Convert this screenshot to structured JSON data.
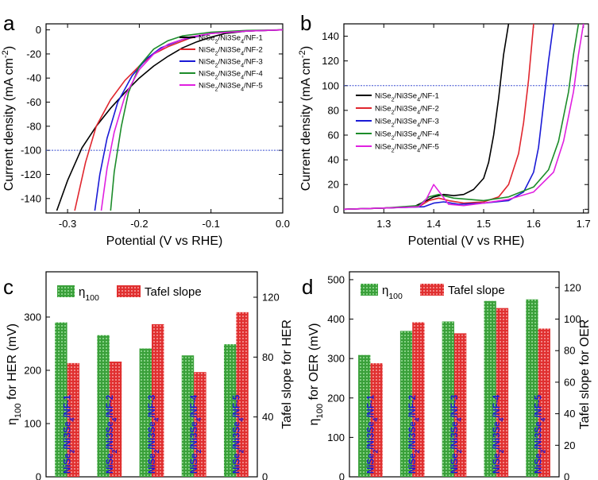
{
  "panel_letters": {
    "a": "a",
    "b": "b",
    "c": "c",
    "d": "d"
  },
  "samples": [
    "NiSe2/Ni3Se4/NF-1",
    "NiSe2/Ni3Se4/NF-2",
    "NiSe2/Ni3Se4/NF-3",
    "NiSe2/Ni3Se4/NF-4",
    "NiSe2/Ni3Se4/NF-5"
  ],
  "colors": {
    "s1": "#000000",
    "s2": "#e0262e",
    "s3": "#1a1ad6",
    "s4": "#1c8c2a",
    "s5": "#e020e0",
    "ref_line": "#3a4fd0",
    "eta_bar": "#3aa03a",
    "tafel_bar": "#e03030"
  },
  "chart_data": [
    {
      "id": "a",
      "type": "line",
      "title": "",
      "xlabel": "Potential (V vs RHE)",
      "ylabel": "Current density (mA cm-2)",
      "xlim": [
        -0.33,
        0.0
      ],
      "ylim": [
        -152,
        5
      ],
      "xticks": [
        "-0.3",
        "-0.2",
        "-0.1",
        "0.0"
      ],
      "xtick_values": [
        -0.3,
        -0.2,
        -0.1,
        0.0
      ],
      "yticks": [
        "0",
        "-20",
        "-40",
        "-60",
        "-80",
        "-100",
        "-120",
        "-140"
      ],
      "ytick_values": [
        0,
        -20,
        -40,
        -60,
        -80,
        -100,
        -120,
        -140
      ],
      "reference_line": {
        "y": -100,
        "style": "dashed"
      },
      "legend_position": "top-right",
      "series": [
        {
          "name": "NiSe2/Ni3Se4/NF-1",
          "x": [
            0.0,
            -0.05,
            -0.08,
            -0.1,
            -0.12,
            -0.14,
            -0.16,
            -0.18,
            -0.2,
            -0.22,
            -0.24,
            -0.26,
            -0.28,
            -0.3,
            -0.315
          ],
          "y": [
            0,
            -1,
            -3,
            -6,
            -10,
            -15,
            -22,
            -30,
            -40,
            -52,
            -65,
            -80,
            -98,
            -125,
            -150
          ]
        },
        {
          "name": "NiSe2/Ni3Se4/NF-2",
          "x": [
            0.0,
            -0.05,
            -0.1,
            -0.13,
            -0.16,
            -0.18,
            -0.2,
            -0.22,
            -0.24,
            -0.26,
            -0.275,
            -0.29
          ],
          "y": [
            0,
            -1,
            -3,
            -7,
            -14,
            -20,
            -30,
            -42,
            -58,
            -80,
            -110,
            -150
          ]
        },
        {
          "name": "NiSe2/Ni3Se4/NF-3",
          "x": [
            0.0,
            -0.05,
            -0.1,
            -0.14,
            -0.17,
            -0.19,
            -0.21,
            -0.23,
            -0.245,
            -0.255,
            -0.262
          ],
          "y": [
            0,
            -1,
            -3,
            -8,
            -15,
            -24,
            -38,
            -60,
            -90,
            -120,
            -150
          ]
        },
        {
          "name": "NiSe2/Ni3Se4/NF-4",
          "x": [
            0.0,
            -0.05,
            -0.1,
            -0.14,
            -0.16,
            -0.18,
            -0.2,
            -0.215,
            -0.225,
            -0.235,
            -0.24
          ],
          "y": [
            0,
            -0.5,
            -2,
            -5,
            -9,
            -16,
            -30,
            -52,
            -80,
            -118,
            -150
          ]
        },
        {
          "name": "NiSe2/Ni3Se4/NF-5",
          "x": [
            0.0,
            -0.05,
            -0.1,
            -0.13,
            -0.16,
            -0.18,
            -0.2,
            -0.22,
            -0.235,
            -0.245,
            -0.253
          ],
          "y": [
            0,
            -1,
            -3,
            -6,
            -12,
            -20,
            -33,
            -55,
            -85,
            -115,
            -150
          ]
        }
      ]
    },
    {
      "id": "b",
      "type": "line",
      "title": "",
      "xlabel": "Potential (V vs RHE)",
      "ylabel": "Current density (mA cm-2)",
      "xlim": [
        1.22,
        1.71
      ],
      "ylim": [
        -3,
        150
      ],
      "xticks": [
        "1.3",
        "1.4",
        "1.5",
        "1.6",
        "1.7"
      ],
      "xtick_values": [
        1.3,
        1.4,
        1.5,
        1.6,
        1.7
      ],
      "yticks": [
        "0",
        "20",
        "40",
        "60",
        "80",
        "100",
        "120",
        "140"
      ],
      "ytick_values": [
        0,
        20,
        40,
        60,
        80,
        100,
        120,
        140
      ],
      "reference_line": {
        "y": 100,
        "style": "dashed"
      },
      "legend_position": "center-left",
      "series": [
        {
          "name": "NiSe2/Ni3Se4/NF-1",
          "x": [
            1.22,
            1.3,
            1.36,
            1.38,
            1.4,
            1.42,
            1.44,
            1.46,
            1.48,
            1.5,
            1.51,
            1.52,
            1.53,
            1.54,
            1.55
          ],
          "y": [
            0,
            1,
            2,
            6,
            10,
            12,
            11,
            12,
            16,
            25,
            38,
            60,
            90,
            125,
            150
          ]
        },
        {
          "name": "NiSe2/Ni3Se4/NF-2",
          "x": [
            1.22,
            1.3,
            1.37,
            1.39,
            1.41,
            1.43,
            1.46,
            1.5,
            1.53,
            1.55,
            1.57,
            1.58,
            1.59,
            1.6
          ],
          "y": [
            0,
            1,
            2,
            7,
            9,
            7,
            5,
            6,
            10,
            20,
            45,
            70,
            105,
            150
          ]
        },
        {
          "name": "NiSe2/Ni3Se4/NF-3",
          "x": [
            1.22,
            1.3,
            1.38,
            1.4,
            1.42,
            1.45,
            1.5,
            1.55,
            1.58,
            1.6,
            1.61,
            1.62,
            1.63,
            1.64
          ],
          "y": [
            0,
            1,
            2,
            5,
            6,
            4,
            5,
            7,
            14,
            30,
            50,
            85,
            120,
            150
          ]
        },
        {
          "name": "NiSe2/Ni3Se4/NF-4",
          "x": [
            1.22,
            1.3,
            1.37,
            1.39,
            1.41,
            1.44,
            1.5,
            1.55,
            1.6,
            1.63,
            1.65,
            1.67,
            1.68,
            1.69
          ],
          "y": [
            0,
            1,
            3,
            10,
            12,
            9,
            7,
            10,
            18,
            32,
            55,
            95,
            125,
            150
          ]
        },
        {
          "name": "NiSe2/Ni3Se4/NF-5",
          "x": [
            1.22,
            1.3,
            1.37,
            1.385,
            1.4,
            1.415,
            1.43,
            1.46,
            1.5,
            1.55,
            1.6,
            1.64,
            1.66,
            1.68,
            1.69,
            1.7
          ],
          "y": [
            0,
            1,
            2,
            8,
            20,
            12,
            4,
            3,
            5,
            8,
            14,
            30,
            55,
            95,
            125,
            150
          ]
        }
      ]
    },
    {
      "id": "c",
      "type": "bar",
      "title": "",
      "categories": [
        "NiSe2/Ni3Se4/NF-1",
        "NiSe2/Ni3Se4/NF-2",
        "NiSe2/Ni3Se4/NF-3",
        "NiSe2/Ni3Se4/NF-4",
        "NiSe2/Ni3Se4/NF-5"
      ],
      "ylabel": "η100 for HER (mV)",
      "y2label": "Tafel slope for HER",
      "ylim": [
        0,
        385
      ],
      "y2lim": [
        0,
        137
      ],
      "yticks": [
        "0",
        "100",
        "200",
        "300"
      ],
      "ytick_values": [
        0,
        100,
        200,
        300
      ],
      "y2ticks": [
        "0",
        "40",
        "80",
        "120"
      ],
      "y2tick_values": [
        0,
        40,
        80,
        120
      ],
      "legend": [
        "η100",
        "Tafel slope"
      ],
      "legend_position": "top",
      "series": [
        {
          "name": "η100",
          "axis": "left",
          "values": [
            290,
            266,
            241,
            228,
            249
          ]
        },
        {
          "name": "Tafel slope",
          "axis": "right",
          "values": [
            76,
            77,
            102,
            70,
            110
          ]
        }
      ]
    },
    {
      "id": "d",
      "type": "bar",
      "title": "",
      "categories": [
        "NiSe2/Ni3Se4/NF-1",
        "NiSe2/Ni3Se4/NF-2",
        "NiSe2/Ni3Se4/NF-3",
        "NiSe2/Ni3Se4/NF-4",
        "NiSe2/Ni3Se4/NF-5"
      ],
      "ylabel": "η100 for OER (mV)",
      "y2label": "Tafel slope for OER",
      "ylim": [
        0,
        520
      ],
      "y2lim": [
        0,
        130
      ],
      "yticks": [
        "0",
        "100",
        "200",
        "300",
        "400",
        "500"
      ],
      "ytick_values": [
        0,
        100,
        200,
        300,
        400,
        500
      ],
      "y2ticks": [
        "0",
        "20",
        "40",
        "60",
        "80",
        "100",
        "120"
      ],
      "y2tick_values": [
        0,
        20,
        40,
        60,
        80,
        100,
        120
      ],
      "legend": [
        "η100",
        "Tafel slope"
      ],
      "legend_position": "top",
      "series": [
        {
          "name": "η100",
          "axis": "left",
          "values": [
            309,
            370,
            394,
            446,
            450
          ]
        },
        {
          "name": "Tafel slope",
          "axis": "right",
          "values": [
            72,
            98,
            91,
            107,
            94
          ]
        }
      ]
    }
  ]
}
